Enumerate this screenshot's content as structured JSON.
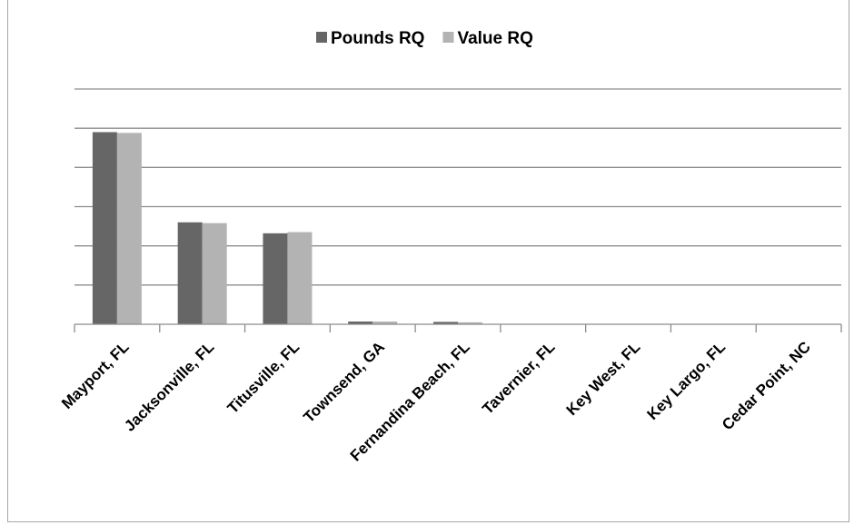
{
  "chart_data": {
    "type": "bar",
    "title": "",
    "xlabel": "",
    "ylabel": "",
    "categories": [
      "Mayport, FL",
      "Jacksonville, FL",
      "Titusville, FL",
      "Townsend, GA",
      "Fernandina Beach, FL",
      "Tavernier, FL",
      "Key West, FL",
      "Key Largo, FL",
      "Cedar Point, NC"
    ],
    "series": [
      {
        "name": "Pounds RQ",
        "color": "#666666",
        "values": [
          4.9,
          2.6,
          2.32,
          0.07,
          0.06,
          0,
          0,
          0,
          0
        ]
      },
      {
        "name": "Value RQ",
        "color": "#b3b3b3",
        "values": [
          4.88,
          2.58,
          2.35,
          0.07,
          0.05,
          0,
          0,
          0,
          0
        ]
      }
    ],
    "ylim": [
      0,
      6
    ],
    "y_gridlines": 6,
    "y_tick_labels_shown": false,
    "grid": true,
    "legend_position": "top"
  }
}
